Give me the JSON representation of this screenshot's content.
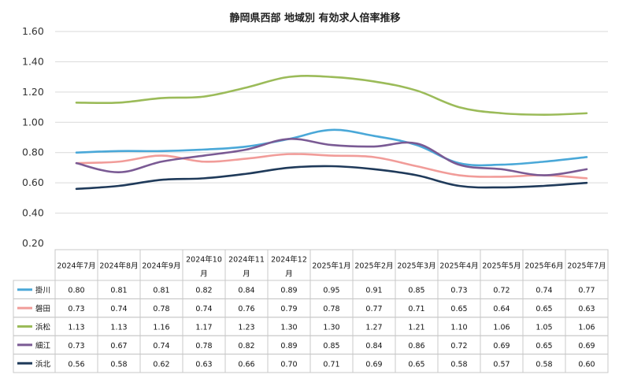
{
  "chart_data": {
    "type": "line",
    "title": "静岡県西部 地域別 有効求人倍率推移",
    "categories": [
      "2024年7月",
      "2024年8月",
      "2024年9月",
      "2024年10月",
      "2024年11月",
      "2024年12月",
      "2025年1月",
      "2025年2月",
      "2025年3月",
      "2025年4月",
      "2025年5月",
      "2025年6月",
      "2025年7月"
    ],
    "category_display": [
      [
        "2024年7月"
      ],
      [
        "2024年8月"
      ],
      [
        "2024年9月"
      ],
      [
        "2024年10",
        "月"
      ],
      [
        "2024年11",
        "月"
      ],
      [
        "2024年12",
        "月"
      ],
      [
        "2025年1月"
      ],
      [
        "2025年2月"
      ],
      [
        "2025年3月"
      ],
      [
        "2025年4月"
      ],
      [
        "2025年5月"
      ],
      [
        "2025年6月"
      ],
      [
        "2025年7月"
      ]
    ],
    "y_ticks": [
      "1.60",
      "1.40",
      "1.20",
      "1.00",
      "0.80",
      "0.60",
      "0.40",
      "0.20"
    ],
    "ylim": [
      0.2,
      1.6
    ],
    "grid": true,
    "legend": "data-table",
    "series": [
      {
        "name": "掛川",
        "color": "#4aa8d8",
        "values": [
          0.8,
          0.81,
          0.81,
          0.82,
          0.84,
          0.89,
          0.95,
          0.91,
          0.85,
          0.73,
          0.72,
          0.74,
          0.77
        ],
        "labels": [
          "0.80",
          "0.81",
          "0.81",
          "0.82",
          "0.84",
          "0.89",
          "0.95",
          "0.91",
          "0.85",
          "0.73",
          "0.72",
          "0.74",
          "0.77"
        ]
      },
      {
        "name": "磐田",
        "color": "#f19c99",
        "values": [
          0.73,
          0.74,
          0.78,
          0.74,
          0.76,
          0.79,
          0.78,
          0.77,
          0.71,
          0.65,
          0.64,
          0.65,
          0.63
        ],
        "labels": [
          "0.73",
          "0.74",
          "0.78",
          "0.74",
          "0.76",
          "0.79",
          "0.78",
          "0.77",
          "0.71",
          "0.65",
          "0.64",
          "0.65",
          "0.63"
        ]
      },
      {
        "name": "浜松",
        "color": "#9bbb59",
        "values": [
          1.13,
          1.13,
          1.16,
          1.17,
          1.23,
          1.3,
          1.3,
          1.27,
          1.21,
          1.1,
          1.06,
          1.05,
          1.06
        ],
        "labels": [
          "1.13",
          "1.13",
          "1.16",
          "1.17",
          "1.23",
          "1.30",
          "1.30",
          "1.27",
          "1.21",
          "1.10",
          "1.06",
          "1.05",
          "1.06"
        ]
      },
      {
        "name": "細江",
        "color": "#7a5a94",
        "values": [
          0.73,
          0.67,
          0.74,
          0.78,
          0.82,
          0.89,
          0.85,
          0.84,
          0.86,
          0.72,
          0.69,
          0.65,
          0.69
        ],
        "labels": [
          "0.73",
          "0.67",
          "0.74",
          "0.78",
          "0.82",
          "0.89",
          "0.85",
          "0.84",
          "0.86",
          "0.72",
          "0.69",
          "0.65",
          "0.69"
        ]
      },
      {
        "name": "浜北",
        "color": "#1f3a5a",
        "values": [
          0.56,
          0.58,
          0.62,
          0.63,
          0.66,
          0.7,
          0.71,
          0.69,
          0.65,
          0.58,
          0.57,
          0.58,
          0.6
        ],
        "labels": [
          "0.56",
          "0.58",
          "0.62",
          "0.63",
          "0.66",
          "0.70",
          "0.71",
          "0.69",
          "0.65",
          "0.58",
          "0.57",
          "0.58",
          "0.60"
        ]
      }
    ]
  }
}
